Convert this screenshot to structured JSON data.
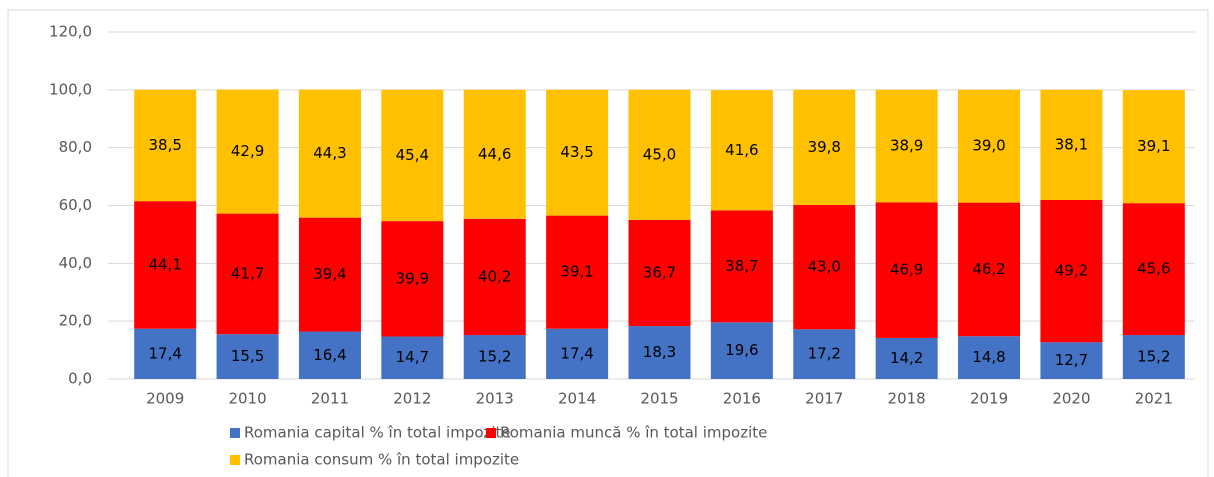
{
  "chart_data": {
    "type": "stacked_bar",
    "categories": [
      "2009",
      "2010",
      "2011",
      "2012",
      "2013",
      "2014",
      "2015",
      "2016",
      "2017",
      "2018",
      "2019",
      "2020",
      "2021"
    ],
    "series": [
      {
        "name": "Romania capital % în total impozite",
        "color": "#4472c4",
        "values": [
          17.4,
          15.5,
          16.4,
          14.7,
          15.2,
          17.4,
          18.3,
          19.6,
          17.2,
          14.2,
          14.8,
          12.7,
          15.2
        ],
        "value_labels": [
          "17,4",
          "15,5",
          "16,4",
          "14,7",
          "15,2",
          "17,4",
          "18,3",
          "19,6",
          "17,2",
          "14,2",
          "14,8",
          "12,7",
          "15,2"
        ]
      },
      {
        "name": "Romania muncă % în total impozite",
        "color": "#ff0000",
        "values": [
          44.1,
          41.7,
          39.4,
          39.9,
          40.2,
          39.1,
          36.7,
          38.7,
          43.0,
          46.9,
          46.2,
          49.2,
          45.6
        ],
        "value_labels": [
          "44,1",
          "41,7",
          "39,4",
          "39,9",
          "40,2",
          "39,1",
          "36,7",
          "38,7",
          "43,0",
          "46,9",
          "46,2",
          "49,2",
          "45,6"
        ]
      },
      {
        "name": "Romania consum % în total impozite",
        "color": "#ffc000",
        "values": [
          38.5,
          42.9,
          44.3,
          45.4,
          44.6,
          43.5,
          45.0,
          41.6,
          39.8,
          38.9,
          39.0,
          38.1,
          39.1
        ],
        "value_labels": [
          "38,5",
          "42,9",
          "44,3",
          "45,4",
          "44,6",
          "43,5",
          "45,0",
          "41,6",
          "39,8",
          "38,9",
          "39,0",
          "38,1",
          "39,1"
        ]
      }
    ],
    "ylim": [
      0,
      120
    ],
    "yticks": [
      {
        "value": 0,
        "label": "0,0"
      },
      {
        "value": 20,
        "label": "20,0"
      },
      {
        "value": 40,
        "label": "40,0"
      },
      {
        "value": 60,
        "label": "60,0"
      },
      {
        "value": 80,
        "label": "80,0"
      },
      {
        "value": 100,
        "label": "100,0"
      },
      {
        "value": 120,
        "label": "120,0"
      }
    ],
    "grid": true
  }
}
